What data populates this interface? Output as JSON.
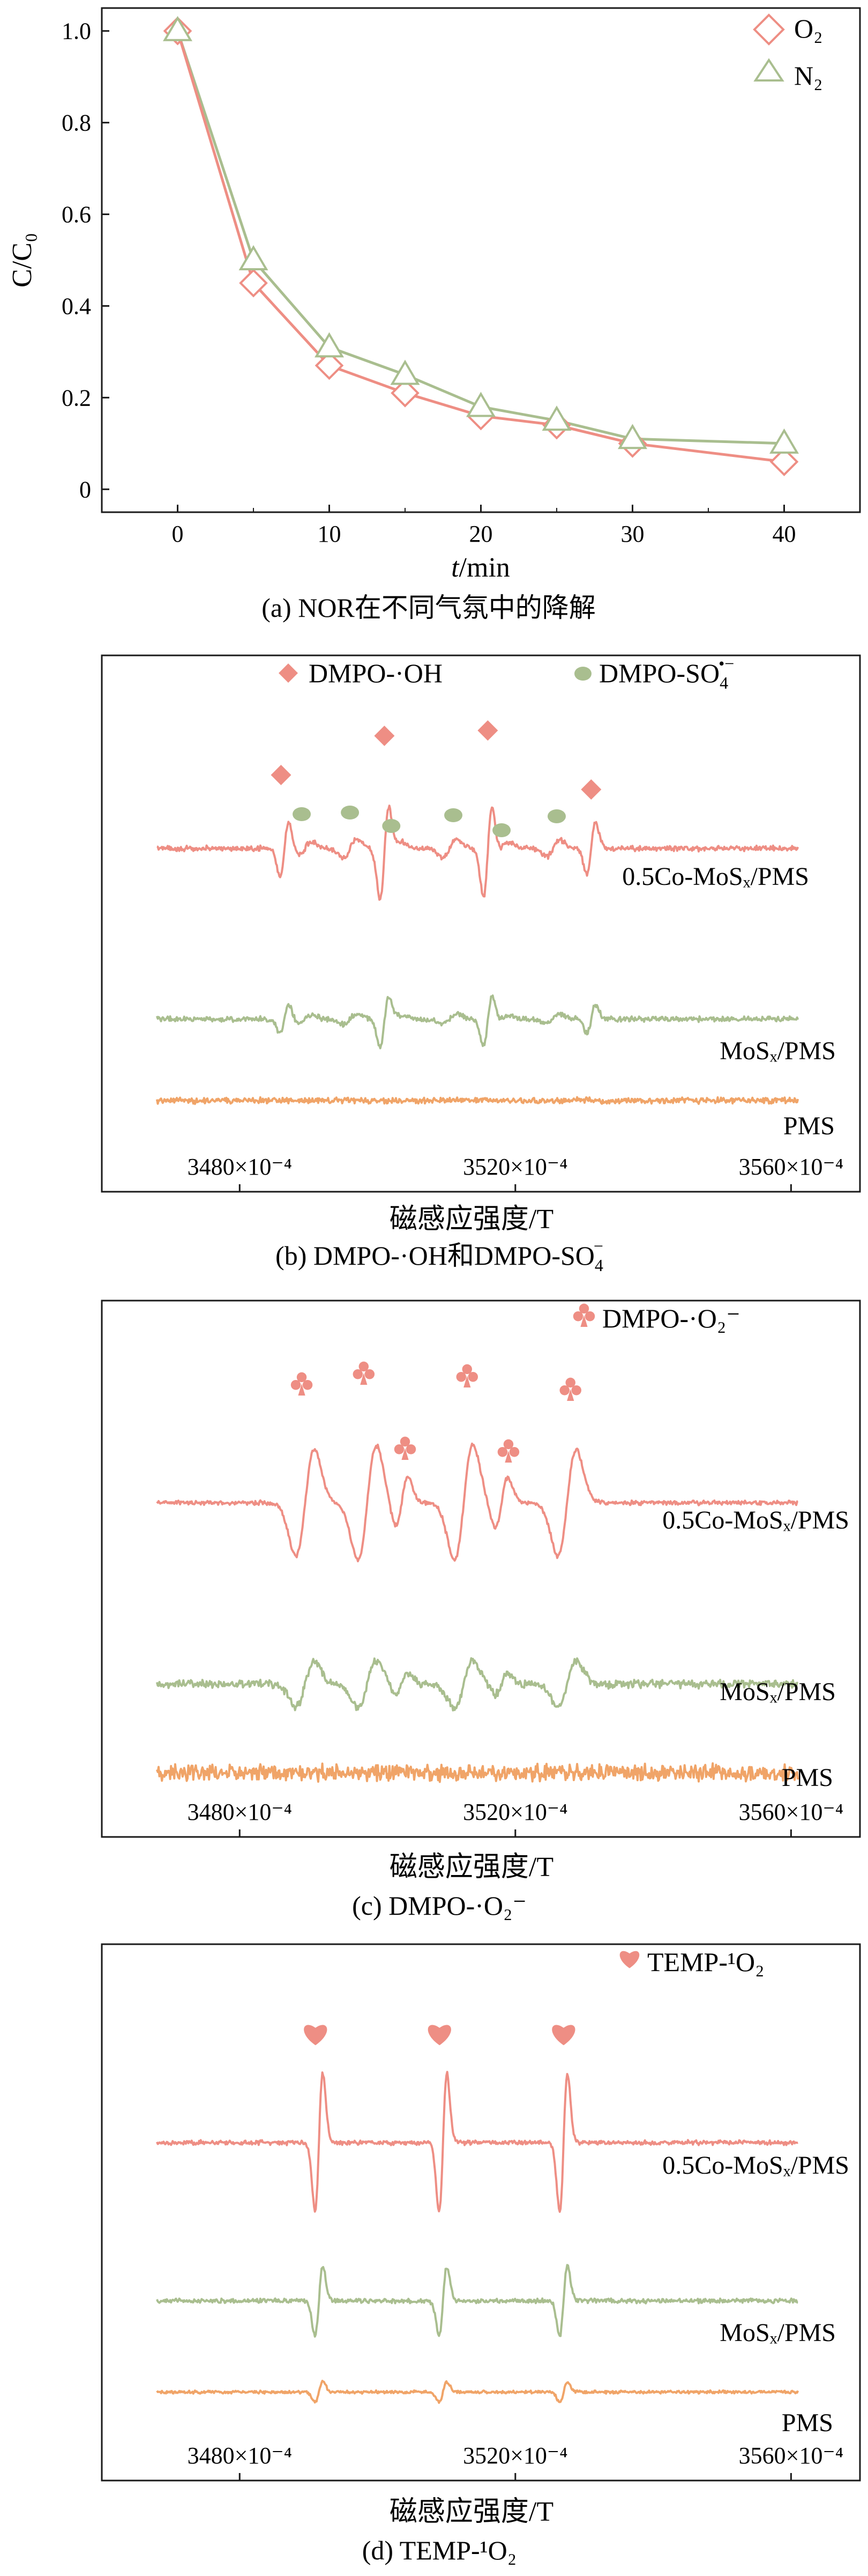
{
  "colors": {
    "red": "#EE8E84",
    "green": "#A9BE8F",
    "orange": "#F0A468",
    "axis": "#1a1a1a"
  },
  "panel_a": {
    "caption": "(a) NOR在不同气氛中的降解",
    "legend": [
      "O₂",
      "N₂"
    ],
    "xlabel_italic": "t",
    "xlabel_rest": "/min",
    "ylabel": "C/C₀",
    "yticks": [
      "0",
      "0.2",
      "0.4",
      "0.6",
      "0.8",
      "1.0"
    ],
    "xticks": [
      "0",
      "10",
      "20",
      "30",
      "40"
    ]
  },
  "panel_b": {
    "caption_pre": "(b) DMPO-·OH和DMPO-SO",
    "caption_sub": "4",
    "caption_sup": "−",
    "legend_1": "DMPO-·OH",
    "legend_2_base": "DMPO-SO",
    "legend_2_sub": "4",
    "legend_2_sup": "•−",
    "trace_labels": [
      "0.5Co-MoSₓ/PMS",
      "MoSₓ/PMS",
      "PMS"
    ],
    "xticks": [
      "3480×10⁻⁴",
      "3520×10⁻⁴",
      "3560×10⁻⁴"
    ],
    "xlabel": "磁感应强度/T"
  },
  "panel_c": {
    "caption": "(c) DMPO-·O₂⁻",
    "legend": "DMPO-·O₂⁻",
    "trace_labels": [
      "0.5Co-MoSₓ/PMS",
      "MoSₓ/PMS",
      "PMS"
    ],
    "xticks": [
      "3480×10⁻⁴",
      "3520×10⁻⁴",
      "3560×10⁻⁴"
    ],
    "xlabel": "磁感应强度/T"
  },
  "panel_d": {
    "caption": "(d) TEMP-¹O₂",
    "legend": "TEMP-¹O₂",
    "trace_labels": [
      "0.5Co-MoSₓ/PMS",
      "MoSₓ/PMS",
      "PMS"
    ],
    "xticks": [
      "3480×10⁻⁴",
      "3520×10⁻⁴",
      "3560×10⁻⁴"
    ],
    "xlabel": "磁感应强度/T"
  },
  "chart_data": [
    {
      "type": "line",
      "xlabel": "t/min",
      "ylabel": "C/C₀",
      "xlim": [
        -5,
        45
      ],
      "ylim": [
        -0.05,
        1.05
      ],
      "x": [
        0,
        5,
        10,
        15,
        20,
        25,
        30,
        40
      ],
      "series": [
        {
          "name": "O₂",
          "marker": "diamond",
          "color": "#EE8E84",
          "values": [
            1.0,
            0.45,
            0.27,
            0.21,
            0.16,
            0.14,
            0.1,
            0.06
          ]
        },
        {
          "name": "N₂",
          "marker": "triangle",
          "color": "#A9BE8F",
          "values": [
            1.0,
            0.5,
            0.31,
            0.25,
            0.18,
            0.15,
            0.11,
            0.1
          ]
        }
      ],
      "legend": "top-right",
      "grid": false
    },
    {
      "type": "line",
      "xlabel": "磁感应强度/T",
      "xlim": [
        3460,
        3570
      ],
      "series": [
        {
          "name": "0.5Co-MoSₓ/PMS",
          "color": "#EE8E84"
        },
        {
          "name": "MoSₓ/PMS",
          "color": "#A9BE8F"
        },
        {
          "name": "PMS",
          "color": "#F0A468"
        }
      ],
      "markers": [
        {
          "label": "DMPO-·OH",
          "symbol": "diamond",
          "x": [
            3486,
            3501,
            3516,
            3531
          ]
        },
        {
          "label": "DMPO-SO4•−",
          "symbol": "ellipse",
          "x": [
            3489,
            3496,
            3502,
            3511,
            3518,
            3526
          ]
        }
      ]
    },
    {
      "type": "line",
      "xlabel": "磁感应强度/T",
      "xlim": [
        3460,
        3570
      ],
      "series": [
        {
          "name": "0.5Co-MoSₓ/PMS",
          "color": "#EE8E84"
        },
        {
          "name": "MoSₓ/PMS",
          "color": "#A9BE8F"
        },
        {
          "name": "PMS",
          "color": "#F0A468"
        }
      ],
      "markers": [
        {
          "label": "DMPO-·O₂⁻",
          "symbol": "club",
          "x": [
            3489,
            3498,
            3504,
            3513,
            3519,
            3528
          ]
        }
      ]
    },
    {
      "type": "line",
      "xlabel": "磁感应强度/T",
      "xlim": [
        3460,
        3570
      ],
      "series": [
        {
          "name": "0.5Co-MoSₓ/PMS",
          "color": "#EE8E84"
        },
        {
          "name": "MoSₓ/PMS",
          "color": "#A9BE8F"
        },
        {
          "name": "PMS",
          "color": "#F0A468"
        }
      ],
      "markers": [
        {
          "label": "TEMP-¹O₂",
          "symbol": "heart",
          "x": [
            3491,
            3509,
            3527
          ]
        }
      ]
    }
  ]
}
